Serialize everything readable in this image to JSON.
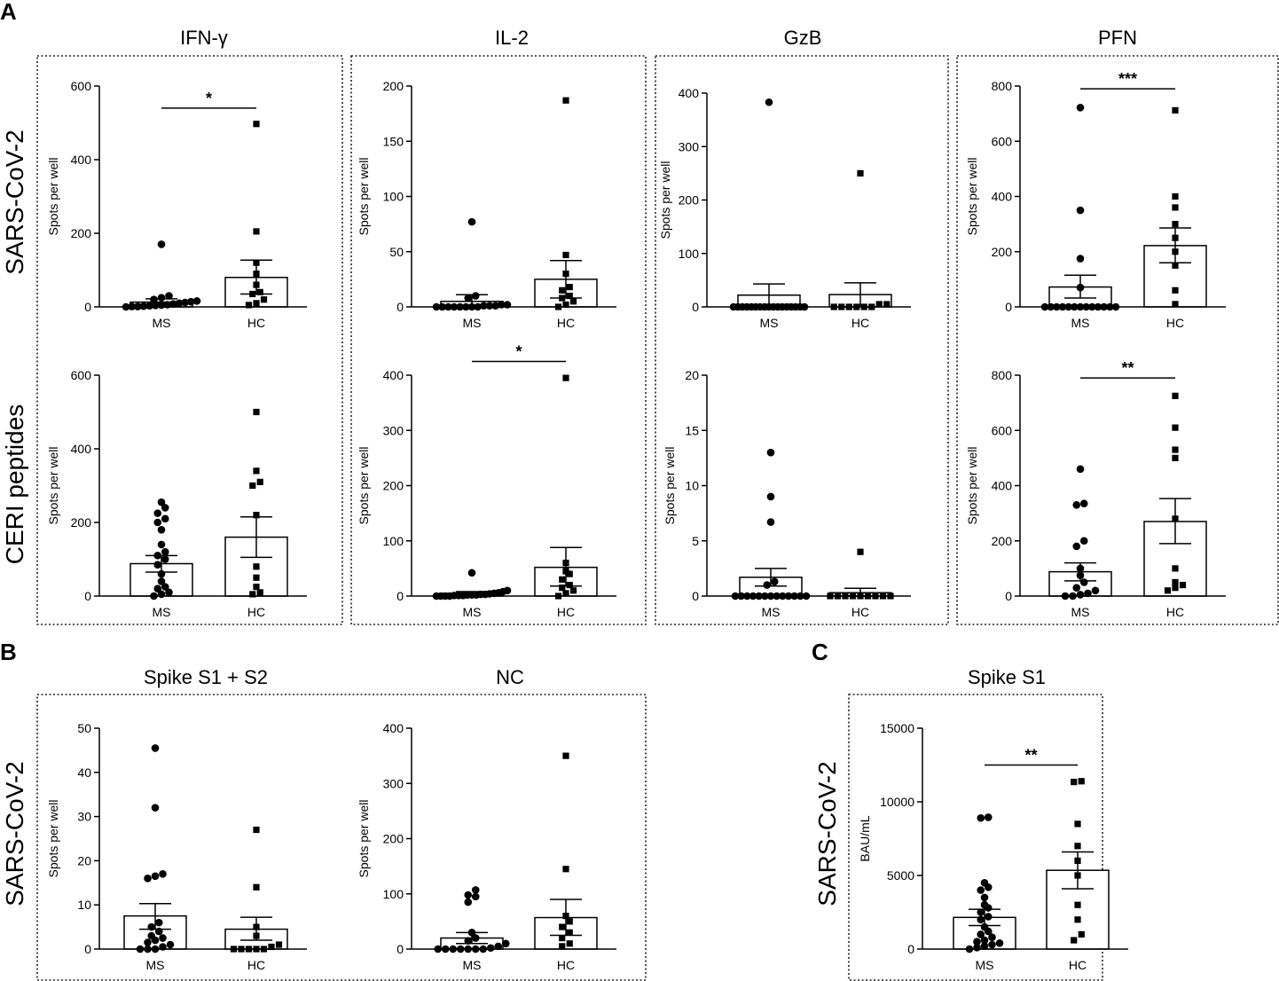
{
  "figure": {
    "panel_letters": [
      "A",
      "B",
      "C"
    ],
    "panelA": {
      "columns": [
        "IFN-γ",
        "IL-2",
        "GzB",
        "PFN"
      ],
      "rows": [
        "SARS-CoV-2",
        "CERI peptides"
      ]
    },
    "panelB": {
      "columns": [
        "Spike S1 + S2",
        "NC"
      ],
      "row": "SARS-CoV-2"
    },
    "panelC": {
      "column": "Spike S1",
      "row": "SARS-CoV-2"
    }
  },
  "chart_data": [
    {
      "id": "a_ifng_sars",
      "type": "bar",
      "panel": "A",
      "title": "IFN-γ",
      "row_label": "SARS-CoV-2",
      "ylabel": "Spots per well",
      "categories": [
        "MS",
        "HC"
      ],
      "ylim": [
        0,
        600
      ],
      "yticks": [
        0,
        200,
        400,
        600
      ],
      "means": [
        13,
        80
      ],
      "sem": [
        [
          5,
          22
        ],
        [
          35,
          127
        ]
      ],
      "points": [
        [
          0,
          1,
          1,
          2,
          3,
          4,
          5,
          6,
          8,
          10,
          12,
          14,
          16,
          20,
          25,
          30,
          170
        ],
        [
          5,
          10,
          20,
          35,
          40,
          60,
          90,
          120,
          205,
          497
        ]
      ],
      "significance": [
        {
          "label": "*",
          "y": 540
        }
      ]
    },
    {
      "id": "a_il2_sars",
      "type": "bar",
      "panel": "A",
      "title": "IL-2",
      "row_label": "SARS-CoV-2",
      "ylabel": "Spots per well",
      "categories": [
        "MS",
        "HC"
      ],
      "ylim": [
        0,
        200
      ],
      "yticks": [
        0,
        50,
        100,
        150,
        200
      ],
      "means": [
        5,
        25
      ],
      "sem": [
        [
          1,
          11
        ],
        [
          8,
          42
        ]
      ],
      "points": [
        [
          0,
          0,
          0,
          0,
          0,
          0,
          0,
          0,
          1,
          1,
          1,
          2,
          2,
          8,
          10,
          77
        ],
        [
          0,
          2,
          5,
          8,
          10,
          15,
          18,
          30,
          47,
          187
        ]
      ],
      "significance": []
    },
    {
      "id": "a_gzb_sars",
      "type": "bar",
      "panel": "A",
      "title": "GzB",
      "row_label": "SARS-CoV-2",
      "ylabel": "Spots per well",
      "categories": [
        "MS",
        "HC"
      ],
      "ylim": [
        0,
        400
      ],
      "yticks": [
        0,
        100,
        200,
        300,
        400
      ],
      "means": [
        22,
        23
      ],
      "sem": [
        [
          2,
          43
        ],
        [
          0,
          45
        ]
      ],
      "points": [
        [
          0,
          0,
          0,
          0,
          0,
          0,
          0,
          0,
          0,
          0,
          0,
          0,
          0,
          0,
          0,
          0,
          0,
          383
        ],
        [
          0,
          0,
          0,
          0,
          0,
          0,
          5,
          5,
          250
        ]
      ],
      "significance": []
    },
    {
      "id": "a_pfn_sars",
      "type": "bar",
      "panel": "A",
      "title": "PFN",
      "row_label": "SARS-CoV-2",
      "ylabel": "Spots per well",
      "categories": [
        "MS",
        "HC"
      ],
      "ylim": [
        0,
        800
      ],
      "yticks": [
        0,
        200,
        400,
        600,
        800
      ],
      "means": [
        72,
        222
      ],
      "sem": [
        [
          32,
          115
        ],
        [
          160,
          286
        ]
      ],
      "points": [
        [
          0,
          0,
          0,
          0,
          0,
          0,
          0,
          0,
          0,
          0,
          0,
          0,
          0,
          70,
          175,
          350,
          722
        ],
        [
          10,
          60,
          150,
          200,
          250,
          300,
          360,
          400,
          712
        ]
      ],
      "significance": [
        {
          "label": "***",
          "y": 790
        }
      ]
    },
    {
      "id": "a_ifng_ceri",
      "type": "bar",
      "panel": "A",
      "title": "IFN-γ",
      "row_label": "CERI peptides",
      "ylabel": "Spots per well",
      "categories": [
        "MS",
        "HC"
      ],
      "ylim": [
        0,
        600
      ],
      "yticks": [
        0,
        200,
        400,
        600
      ],
      "means": [
        88,
        160
      ],
      "sem": [
        [
          65,
          110
        ],
        [
          105,
          215
        ]
      ],
      "points": [
        [
          0,
          5,
          10,
          20,
          25,
          40,
          60,
          85,
          100,
          110,
          120,
          140,
          180,
          200,
          210,
          225,
          240,
          255
        ],
        [
          5,
          10,
          25,
          50,
          80,
          220,
          300,
          340,
          310,
          500
        ]
      ],
      "significance": []
    },
    {
      "id": "a_il2_ceri",
      "type": "bar",
      "panel": "A",
      "title": "IL-2",
      "row_label": "CERI peptides",
      "ylabel": "Spots per well",
      "categories": [
        "MS",
        "HC"
      ],
      "ylim": [
        0,
        400
      ],
      "yticks": [
        0,
        100,
        200,
        300,
        400
      ],
      "means": [
        5,
        52
      ],
      "sem": [
        [
          2,
          8
        ],
        [
          18,
          88
        ]
      ],
      "points": [
        [
          0,
          0,
          0,
          0,
          1,
          1,
          1,
          2,
          2,
          2,
          3,
          3,
          4,
          5,
          6,
          8,
          10,
          42
        ],
        [
          0,
          5,
          10,
          15,
          20,
          30,
          40,
          45,
          60,
          395
        ]
      ],
      "significance": [
        {
          "label": "*",
          "y": 425
        }
      ]
    },
    {
      "id": "a_gzb_ceri",
      "type": "bar",
      "panel": "A",
      "title": "GzB",
      "row_label": "CERI peptides",
      "ylabel": "Spots per well",
      "categories": [
        "MS",
        "HC"
      ],
      "ylim": [
        0,
        20
      ],
      "yticks": [
        0,
        5,
        10,
        15,
        20
      ],
      "means": [
        1.7,
        0.3
      ],
      "sem": [
        [
          0.9,
          2.5
        ],
        [
          0,
          0.7
        ]
      ],
      "points": [
        [
          0,
          0,
          0,
          0,
          0,
          0,
          0,
          0,
          0,
          0,
          0,
          0,
          0,
          1,
          1.3,
          6.7,
          9,
          13
        ],
        [
          0,
          0,
          0,
          0,
          0,
          0,
          0,
          0,
          0,
          4
        ]
      ],
      "significance": []
    },
    {
      "id": "a_pfn_ceri",
      "type": "bar",
      "panel": "A",
      "title": "PFN",
      "row_label": "CERI peptides",
      "ylabel": "Spots per well",
      "categories": [
        "MS",
        "HC"
      ],
      "ylim": [
        0,
        800
      ],
      "yticks": [
        0,
        200,
        400,
        600,
        800
      ],
      "means": [
        88,
        270
      ],
      "sem": [
        [
          55,
          120
        ],
        [
          190,
          353
        ]
      ],
      "points": [
        [
          0,
          0,
          5,
          10,
          20,
          30,
          50,
          75,
          100,
          180,
          200,
          330,
          335,
          460
        ],
        [
          20,
          30,
          40,
          50,
          100,
          280,
          500,
          530,
          610,
          725
        ]
      ],
      "significance": [
        {
          "label": "**",
          "y": 790
        }
      ]
    },
    {
      "id": "b_spike",
      "type": "bar",
      "panel": "B",
      "title": "Spike S1 + S2",
      "row_label": "SARS-CoV-2",
      "ylabel": "Spots per well",
      "categories": [
        "MS",
        "HC"
      ],
      "ylim": [
        0,
        50
      ],
      "yticks": [
        0,
        10,
        20,
        30,
        40,
        50
      ],
      "means": [
        7.5,
        4.5
      ],
      "sem": [
        [
          4.5,
          10.3
        ],
        [
          2,
          7.2
        ]
      ],
      "points": [
        [
          0,
          0,
          0,
          0.5,
          1,
          1.5,
          2,
          2.5,
          3,
          4,
          5,
          6,
          16,
          16.5,
          17,
          32,
          45.5
        ],
        [
          0,
          0,
          0,
          0,
          0,
          0.5,
          1,
          3,
          5,
          14,
          27
        ]
      ],
      "significance": []
    },
    {
      "id": "b_nc",
      "type": "bar",
      "panel": "B",
      "title": "NC",
      "row_label": "SARS-CoV-2",
      "ylabel": "Spots per well",
      "categories": [
        "MS",
        "HC"
      ],
      "ylim": [
        0,
        400
      ],
      "yticks": [
        0,
        100,
        200,
        300,
        400
      ],
      "means": [
        20,
        57
      ],
      "sem": [
        [
          10,
          30
        ],
        [
          25,
          90
        ]
      ],
      "points": [
        [
          0,
          0,
          0,
          0,
          0,
          0,
          0,
          2,
          5,
          10,
          15,
          20,
          30,
          85,
          95,
          98,
          107
        ],
        [
          5,
          10,
          20,
          30,
          40,
          50,
          60,
          145,
          350
        ]
      ],
      "significance": []
    },
    {
      "id": "c_spike_s1",
      "type": "bar",
      "panel": "C",
      "title": "Spike S1",
      "row_label": "SARS-CoV-2",
      "ylabel": "BAU/mL",
      "categories": [
        "MS",
        "HC"
      ],
      "ylim": [
        0,
        15000
      ],
      "yticks": [
        0,
        5000,
        10000,
        15000
      ],
      "means": [
        2150,
        5350
      ],
      "sem": [
        [
          1600,
          2700
        ],
        [
          4100,
          6600
        ]
      ],
      "points": [
        [
          0,
          100,
          200,
          300,
          400,
          500,
          600,
          800,
          1000,
          1200,
          1500,
          2000,
          2200,
          2500,
          2800,
          3000,
          3500,
          4000,
          4200,
          4500,
          8900,
          8950
        ],
        [
          600,
          1000,
          2000,
          3000,
          5000,
          6000,
          7000,
          8500,
          11350,
          11400
        ]
      ],
      "significance": [
        {
          "label": "**",
          "y": 12500
        }
      ]
    }
  ]
}
